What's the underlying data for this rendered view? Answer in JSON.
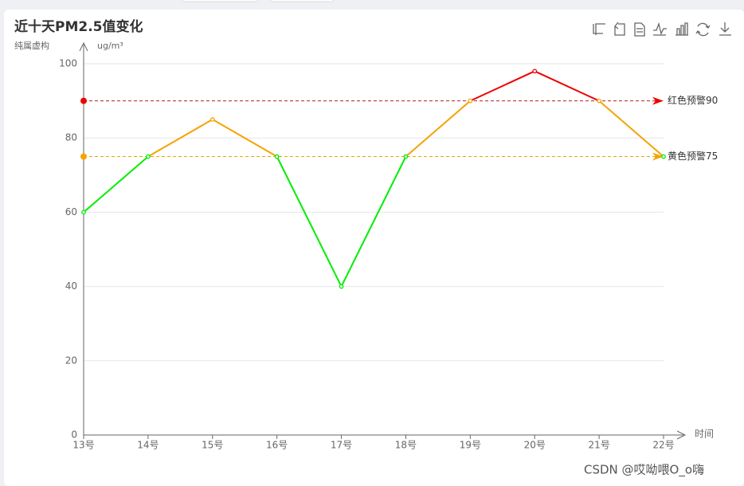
{
  "chart_data": {
    "type": "line",
    "title": "近十天PM2.5值变化",
    "subtitle": "纯属虚构",
    "y_unit": "ug/m³",
    "x_label": "时间",
    "watermark": "CSDN @哎呦喂O_o嗨",
    "categories": [
      "13号",
      "14号",
      "15号",
      "16号",
      "17号",
      "18号",
      "19号",
      "20号",
      "21号",
      "22号"
    ],
    "values": [
      60,
      75,
      85,
      75,
      40,
      75,
      90,
      98,
      90,
      75
    ],
    "ylim": [
      0,
      100
    ],
    "yticks": [
      0,
      20,
      40,
      60,
      80,
      100
    ],
    "grid": true,
    "pieces": [
      {
        "lte": 75,
        "color": "#00ee00"
      },
      {
        "lte": 90,
        "color": "#f5a300"
      },
      {
        "lte": 100,
        "color": "#ee0000"
      }
    ],
    "mark_lines": [
      {
        "value": 90,
        "label": "红色预警90",
        "color": "#ee0000",
        "line_color": "#b02020"
      },
      {
        "value": 75,
        "label": "黄色预警75",
        "color": "#f5a300",
        "line_color": "#e0a800"
      }
    ]
  }
}
